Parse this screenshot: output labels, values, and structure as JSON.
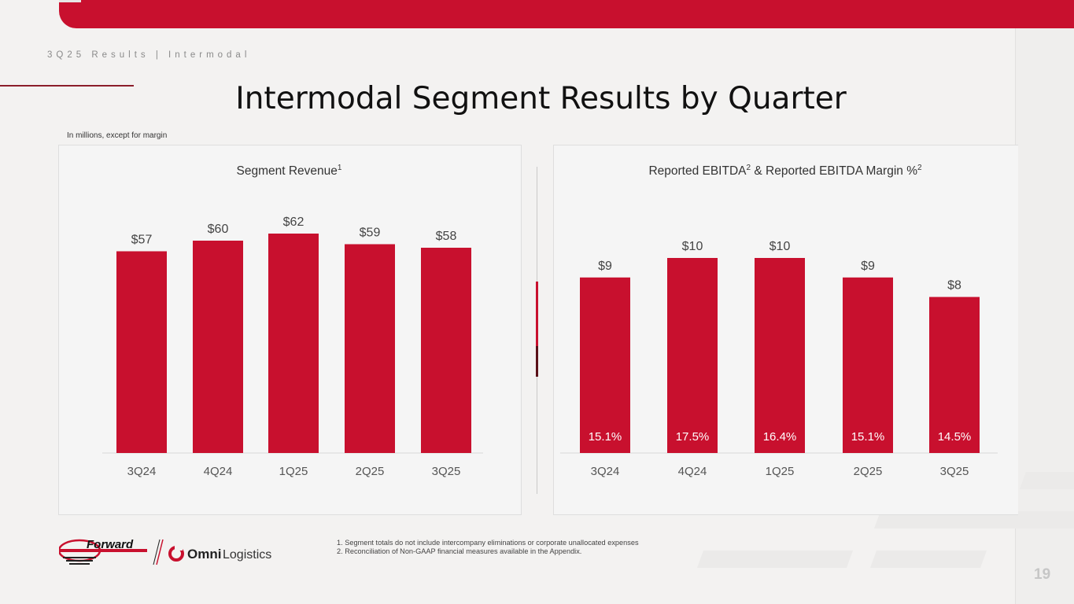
{
  "header": {
    "breadcrumb": "3Q25 Results | Intermodal",
    "title": "Intermodal Segment Results by Quarter",
    "units_note": "In millions, except for margin"
  },
  "colors": {
    "brand_red": "#c8102e",
    "bar_label": "#444444",
    "axis_label": "#555555",
    "inner_label": "#ffffff"
  },
  "chart_data": [
    {
      "type": "bar",
      "title": "Segment Revenue",
      "title_sup": "1",
      "categories": [
        "3Q24",
        "4Q24",
        "1Q25",
        "2Q25",
        "3Q25"
      ],
      "values": [
        57,
        60,
        62,
        59,
        58
      ],
      "labels": [
        "$57",
        "$60",
        "$62",
        "$59",
        "$58"
      ],
      "ylim": [
        0,
        62
      ]
    },
    {
      "type": "bar",
      "title": "Reported EBITDA",
      "title_sup": "2",
      "title_mid": " & Reported EBITDA Margin %",
      "title_sup2": "2",
      "categories": [
        "3Q24",
        "4Q24",
        "1Q25",
        "2Q25",
        "3Q25"
      ],
      "values": [
        9,
        10,
        10,
        9,
        8
      ],
      "labels": [
        "$9",
        "$10",
        "$10",
        "$9",
        "$8"
      ],
      "margins": [
        "15.1%",
        "17.5%",
        "16.4%",
        "15.1%",
        "14.5%"
      ],
      "ylim": [
        0,
        10
      ]
    }
  ],
  "footer": {
    "logo_forward": "Forward",
    "logo_omni": "Omni",
    "logo_logistics": "Logistics",
    "footnote_1": "1.  Segment totals do not include intercompany eliminations or corporate unallocated expenses",
    "footnote_2": "2.  Reconciliation of Non-GAAP financial measures available in the Appendix.",
    "page_number": "19"
  }
}
